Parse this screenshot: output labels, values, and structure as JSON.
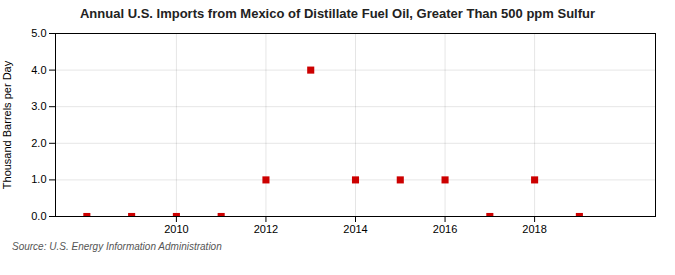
{
  "chart_data": {
    "type": "scatter",
    "title": "Annual U.S. Imports from Mexico of Distillate Fuel Oil, Greater Than 500 ppm Sulfur",
    "ylabel": "Thousand Barrels per Day",
    "annotation": "Source: U.S. Energy Information Administration",
    "x": [
      2008,
      2009,
      2010,
      2011,
      2012,
      2013,
      2014,
      2015,
      2016,
      2017,
      2018,
      2019
    ],
    "values": [
      0.0,
      0.0,
      0.0,
      0.0,
      1.0,
      4.0,
      1.0,
      1.0,
      1.0,
      0.0,
      1.0,
      0.0
    ],
    "color": "#cc0000",
    "marker": "square",
    "xlim": [
      2007.3,
      2020.7
    ],
    "xticks": [
      2010,
      2012,
      2014,
      2016,
      2018
    ],
    "ylim": [
      0.0,
      5.0
    ],
    "yticks": [
      {
        "value": 0.0,
        "label": "0.0"
      },
      {
        "value": 1.0,
        "label": "1.0"
      },
      {
        "value": 2.0,
        "label": "2.0"
      },
      {
        "value": 3.0,
        "label": "3.0"
      },
      {
        "value": 4.0,
        "label": "4.0"
      },
      {
        "value": 5.0,
        "label": "5.0"
      }
    ],
    "grid": true
  }
}
